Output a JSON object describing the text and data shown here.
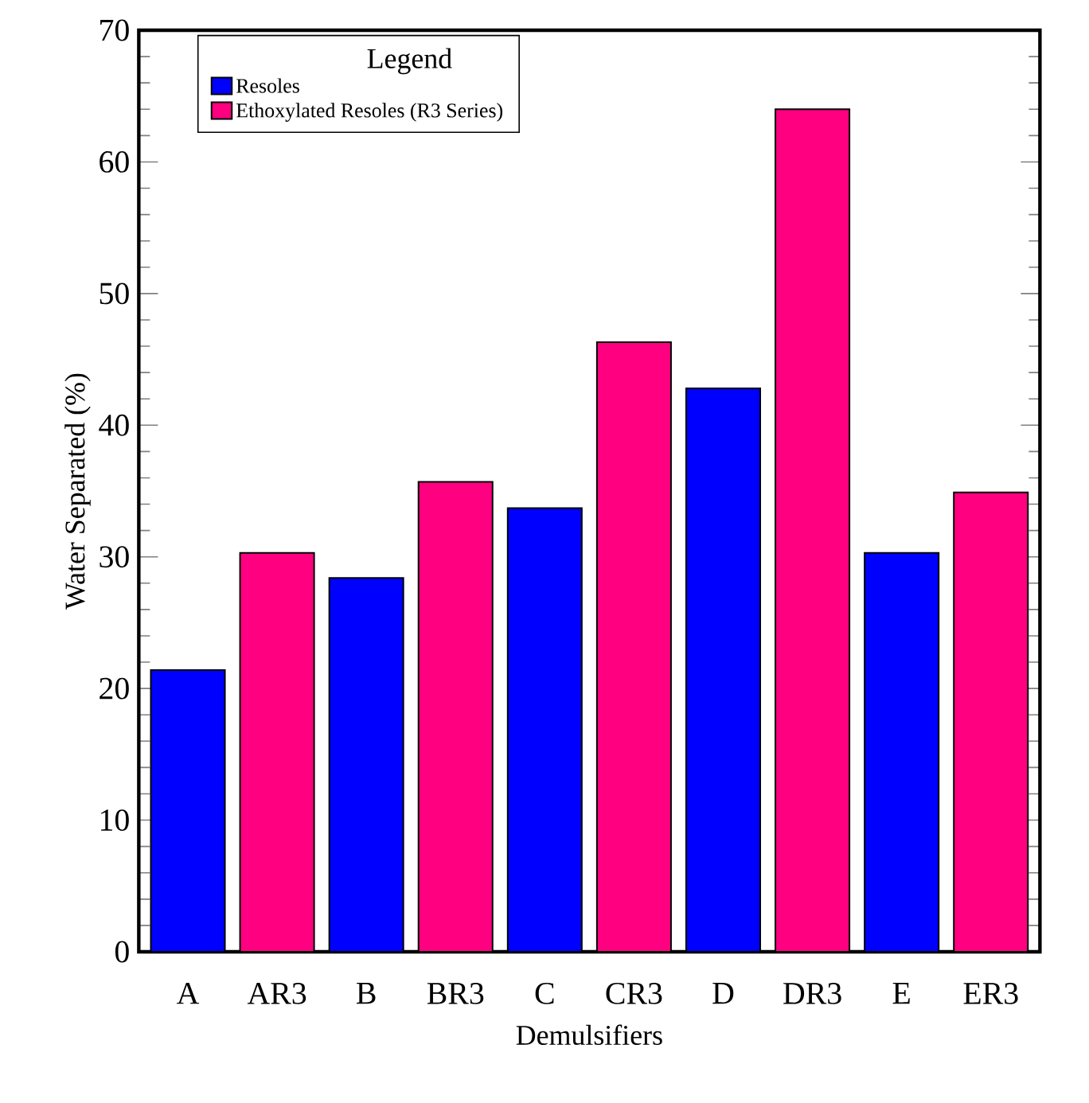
{
  "chart_data": {
    "type": "bar",
    "xlabel": "Demulsifiers",
    "ylabel": "Water Separated (%)",
    "legend_title": "Legend",
    "categories": [
      "A",
      "AR3",
      "B",
      "BR3",
      "C",
      "CR3",
      "D",
      "DR3",
      "E",
      "ER3"
    ],
    "series": [
      {
        "name": "Resoles",
        "color": "#0000ff",
        "values": [
          21.4,
          null,
          28.4,
          null,
          33.7,
          null,
          42.8,
          null,
          30.3,
          null
        ]
      },
      {
        "name": "Ethoxylated Resoles (R3 Series)",
        "color": "#ff0080",
        "values": [
          null,
          30.3,
          null,
          35.7,
          null,
          46.3,
          null,
          64.0,
          null,
          34.9
        ]
      }
    ],
    "ylim": [
      0,
      70
    ],
    "yticks": [
      0,
      10,
      20,
      30,
      40,
      50,
      60,
      70
    ],
    "grid": false,
    "legend": "top left"
  }
}
